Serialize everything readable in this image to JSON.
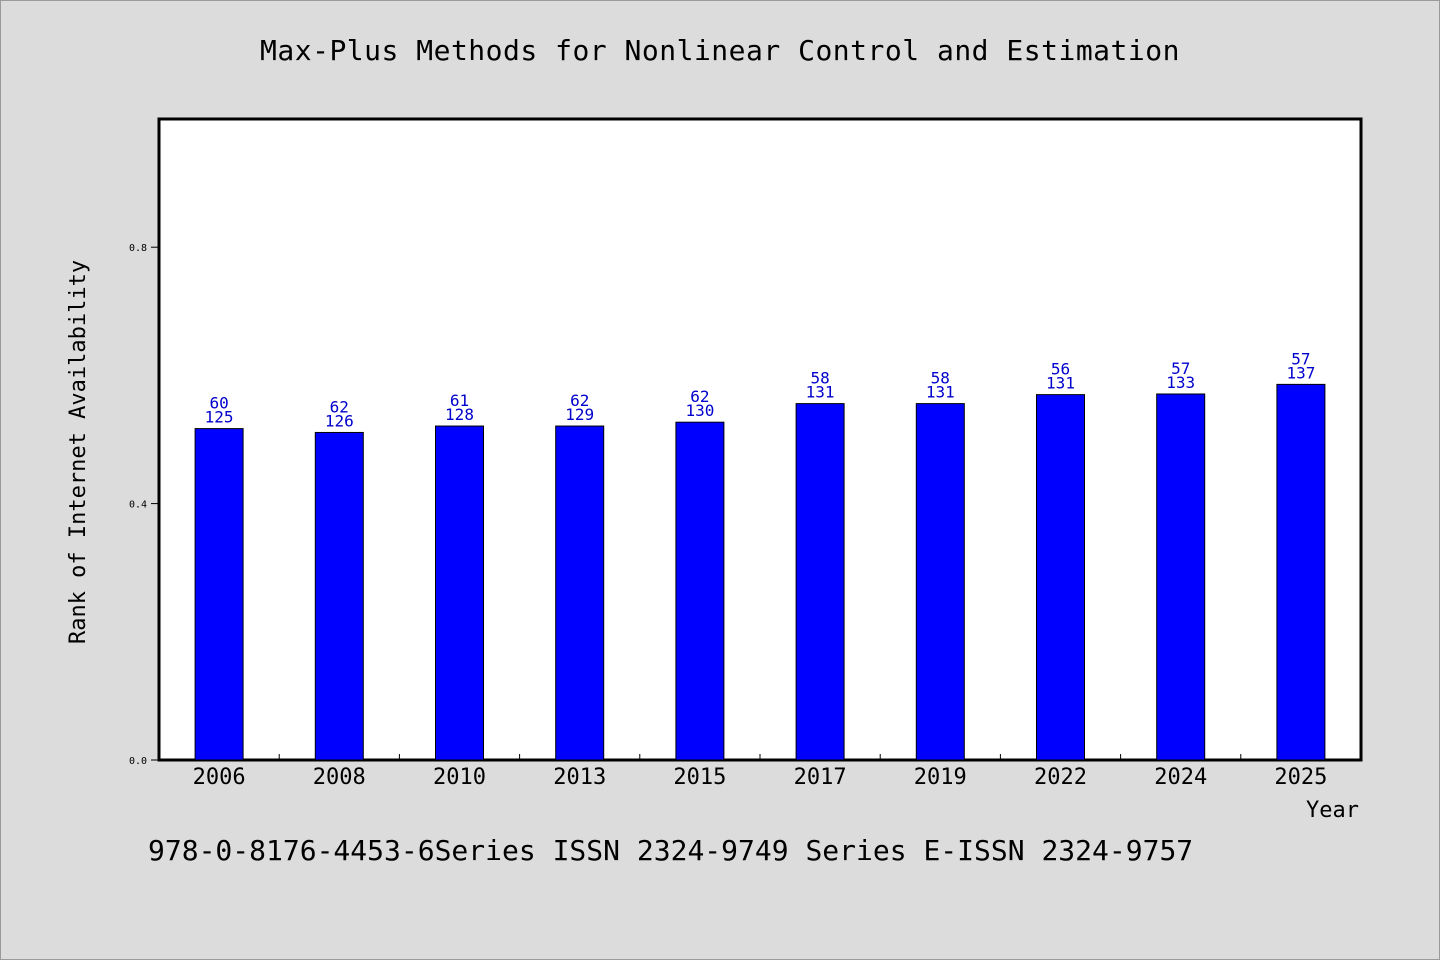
{
  "chart_data": {
    "type": "bar",
    "title": "Max-Plus Methods for Nonlinear Control and Estimation",
    "xlabel": "Year",
    "ylabel": "Rank of Internet Availability",
    "categories": [
      "2006",
      "2008",
      "2010",
      "2013",
      "2015",
      "2017",
      "2019",
      "2022",
      "2024",
      "2025"
    ],
    "values": [
      0.517,
      0.511,
      0.521,
      0.521,
      0.527,
      0.556,
      0.556,
      0.57,
      0.571,
      0.586
    ],
    "label_top": [
      "60",
      "62",
      "61",
      "62",
      "62",
      "58",
      "58",
      "56",
      "57",
      "57"
    ],
    "label_bottom": [
      "125",
      "126",
      "128",
      "129",
      "130",
      "131",
      "131",
      "131",
      "133",
      "137"
    ],
    "ylim": [
      0,
      1.0
    ],
    "yticks": [
      0.0,
      0.4,
      0.8
    ],
    "ytick_labels": [
      "0.0",
      "0.4",
      "0.8"
    ],
    "grid": false,
    "bar_color": "#0000ff",
    "label_color": "#0000cc"
  },
  "footnote": "978-0-8176-4453-6Series ISSN 2324-9749 Series E-ISSN 2324-9757"
}
